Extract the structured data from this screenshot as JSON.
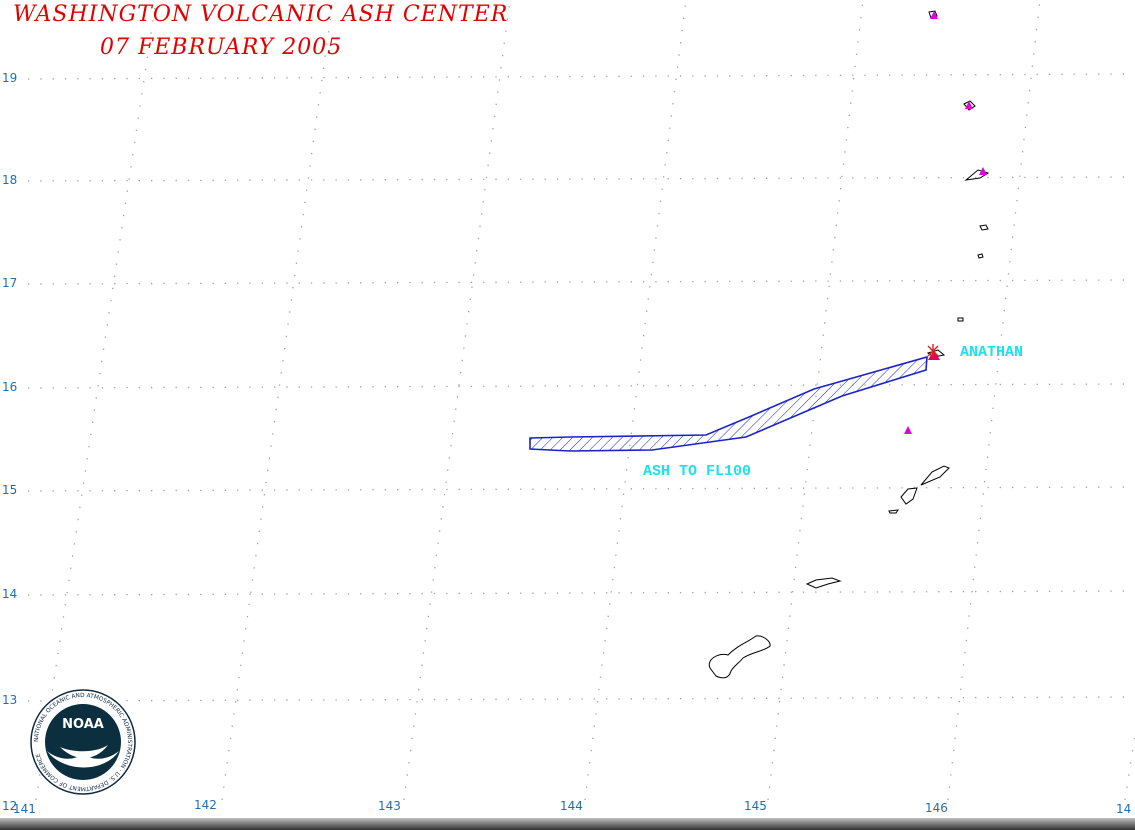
{
  "header": {
    "title": "WASHINGTON VOLCANIC ASH CENTER",
    "date": "07 FEBRUARY 2005"
  },
  "grid": {
    "latitudes": [
      "19",
      "18",
      "17",
      "16",
      "15",
      "14",
      "13",
      "12"
    ],
    "longitudes": [
      "141",
      "142",
      "143",
      "144",
      "145",
      "146",
      "14"
    ]
  },
  "labels": {
    "volcano": "ANATHAN",
    "ash": "ASH TO FL100"
  },
  "logo": {
    "center_text": "NOAA",
    "ring_text": "NATIONAL OCEANIC AND ATMOSPHERIC ADMINISTRATION · U.S. DEPARTMENT OF COMMERCE"
  },
  "colors": {
    "title": "#e00000",
    "grid_labels": "#1f6fb0",
    "ash_outline": "#1a24c8",
    "map_labels": "#1ee0f0",
    "volcano_marker": "#e00060",
    "other_volcanoes": "#e000e0"
  },
  "icons": [
    "volcano-marker-icon",
    "noaa-logo-icon"
  ]
}
